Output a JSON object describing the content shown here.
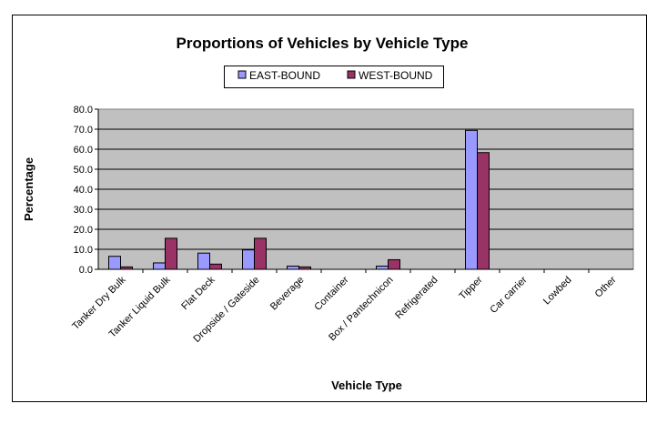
{
  "chart_data": {
    "type": "bar",
    "title": "Proportions of Vehicles by Vehicle Type",
    "xlabel": "Vehicle Type",
    "ylabel": "Percentage",
    "ylim": [
      0,
      80
    ],
    "yticks": [
      "0.0",
      "10.0",
      "20.0",
      "30.0",
      "40.0",
      "50.0",
      "60.0",
      "70.0",
      "80.0"
    ],
    "grid": true,
    "legend_position": "top-center",
    "categories": [
      "Tanker Dry Bulk",
      "Tanker Liquid Bulk",
      "Flat Deck",
      "Dropside / Gateside",
      "Beverage",
      "Container",
      "Box / Pantechnicon",
      "Refrigerated",
      "Tipper",
      "Car carrier",
      "Lowbed",
      "Other"
    ],
    "series": [
      {
        "name": "EAST-BOUND",
        "color": "#9999ff",
        "values": [
          6.5,
          3.2,
          8.1,
          9.7,
          1.6,
          0.0,
          1.6,
          0.0,
          69.4,
          0.0,
          0.0,
          0.0
        ]
      },
      {
        "name": "WEST-BOUND",
        "color": "#993366",
        "values": [
          1.2,
          15.5,
          2.6,
          15.5,
          1.2,
          0.0,
          4.8,
          0.0,
          58.3,
          0.0,
          0.0,
          0.0
        ]
      }
    ],
    "plot_background": "#c0c0c0"
  }
}
